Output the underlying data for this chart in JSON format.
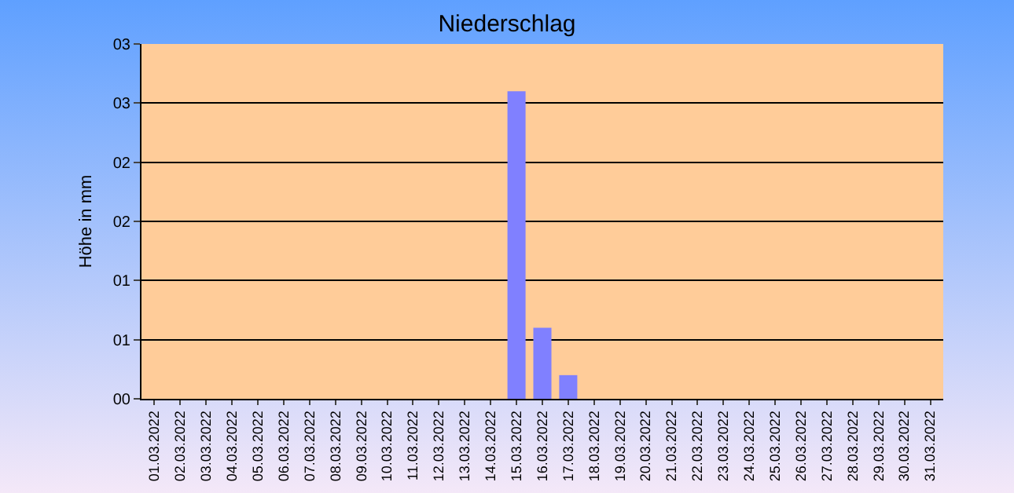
{
  "chart_data": {
    "type": "bar",
    "title": "Niederschlag",
    "ylabel": "Höhe in mm",
    "categories": [
      "01.03.2022",
      "02.03.2022",
      "03.03.2022",
      "04.03.2022",
      "05.03.2022",
      "06.03.2022",
      "07.03.2022",
      "08.03.2022",
      "09.03.2022",
      "10.03.2022",
      "11.03.2022",
      "12.03.2022",
      "13.03.2022",
      "14.03.2022",
      "15.03.2022",
      "16.03.2022",
      "17.03.2022",
      "18.03.2022",
      "19.03.2022",
      "20.03.2022",
      "21.03.2022",
      "22.03.2022",
      "23.03.2022",
      "24.03.2022",
      "25.03.2022",
      "26.03.2022",
      "27.03.2022",
      "28.03.2022",
      "29.03.2022",
      "30.03.2022",
      "31.03.2022"
    ],
    "values": [
      0,
      0,
      0,
      0,
      0,
      0,
      0,
      0,
      0,
      0,
      0,
      0,
      0,
      0,
      2.6,
      0.6,
      0.2,
      0,
      0,
      0,
      0,
      0,
      0,
      0,
      0,
      0,
      0,
      0,
      0,
      0,
      0
    ],
    "color": "#8080ff",
    "ylim": [
      0,
      3
    ],
    "yticks": [
      {
        "value": 0,
        "label": "00"
      },
      {
        "value": 0.5,
        "label": "01"
      },
      {
        "value": 1,
        "label": "01"
      },
      {
        "value": 1.5,
        "label": "02"
      },
      {
        "value": 2,
        "label": "02"
      },
      {
        "value": 2.5,
        "label": "03"
      },
      {
        "value": 3,
        "label": "03"
      }
    ],
    "grid": "y"
  }
}
